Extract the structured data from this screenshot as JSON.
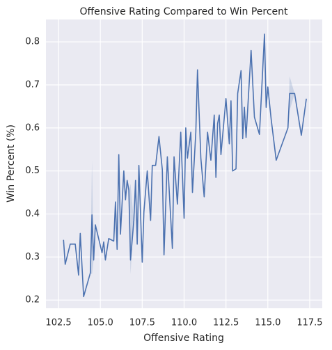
{
  "chart_data": {
    "type": "line",
    "title": "Offensive Rating Compared to Win Percent",
    "x_label": "Offensive Rating",
    "y_label": "Win Percent (%)",
    "x": [
      102.8,
      102.9,
      103.2,
      103.5,
      103.7,
      103.8,
      104.0,
      104.4,
      104.5,
      104.6,
      104.7,
      105.1,
      105.2,
      105.3,
      105.5,
      105.8,
      105.9,
      106.0,
      106.1,
      106.2,
      106.4,
      106.5,
      106.6,
      106.7,
      106.8,
      107.0,
      107.1,
      107.2,
      107.3,
      107.5,
      107.6,
      107.8,
      108.0,
      108.1,
      108.3,
      108.5,
      108.7,
      108.8,
      109.0,
      109.3,
      109.4,
      109.6,
      109.8,
      110.0,
      110.1,
      110.2,
      110.4,
      110.5,
      110.7,
      110.8,
      111.0,
      111.2,
      111.4,
      111.6,
      111.8,
      111.9,
      112.0,
      112.1,
      112.2,
      112.5,
      112.7,
      112.8,
      112.9,
      113.1,
      113.2,
      113.4,
      113.5,
      113.6,
      113.7,
      114.0,
      114.2,
      114.5,
      114.8,
      114.9,
      115.0,
      115.2,
      115.5,
      116.2,
      116.3,
      116.6,
      117.0,
      117.3
    ],
    "series": [
      {
        "color": "#4c72b0",
        "values": [
          0.34,
          0.283,
          0.33,
          0.33,
          0.258,
          0.355,
          0.208,
          0.263,
          0.398,
          0.293,
          0.375,
          0.31,
          0.335,
          0.293,
          0.343,
          0.337,
          0.428,
          0.318,
          0.538,
          0.353,
          0.5,
          0.433,
          0.478,
          0.455,
          0.293,
          0.385,
          0.478,
          0.33,
          0.513,
          0.288,
          0.405,
          0.5,
          0.385,
          0.513,
          0.513,
          0.58,
          0.503,
          0.305,
          0.533,
          0.32,
          0.533,
          0.423,
          0.59,
          0.39,
          0.6,
          0.53,
          0.59,
          0.45,
          0.59,
          0.735,
          0.53,
          0.44,
          0.59,
          0.525,
          0.63,
          0.485,
          0.61,
          0.63,
          0.538,
          0.668,
          0.563,
          0.663,
          0.5,
          0.505,
          0.68,
          0.733,
          0.575,
          0.648,
          0.578,
          0.78,
          0.625,
          0.585,
          0.818,
          0.648,
          0.695,
          0.62,
          0.525,
          0.6,
          0.68,
          0.68,
          0.583,
          0.668
        ],
        "ci_lower": [
          null,
          null,
          null,
          null,
          null,
          null,
          null,
          0.263,
          0.26,
          0.293,
          null,
          null,
          null,
          null,
          null,
          null,
          null,
          null,
          null,
          null,
          null,
          null,
          null,
          0.455,
          0.26,
          0.385,
          null,
          null,
          null,
          null,
          null,
          null,
          null,
          null,
          null,
          null,
          null,
          null,
          null,
          null,
          null,
          null,
          null,
          null,
          null,
          null,
          null,
          null,
          null,
          null,
          null,
          null,
          null,
          null,
          null,
          null,
          null,
          null,
          null,
          null,
          null,
          null,
          null,
          null,
          null,
          null,
          null,
          null,
          null,
          null,
          null,
          null,
          null,
          null,
          null,
          null,
          null,
          0.6,
          0.64,
          0.68,
          null,
          null
        ],
        "ci_upper": [
          null,
          null,
          null,
          null,
          null,
          null,
          null,
          0.263,
          0.525,
          0.293,
          null,
          null,
          null,
          null,
          null,
          null,
          null,
          null,
          null,
          null,
          null,
          null,
          null,
          0.455,
          0.47,
          0.385,
          null,
          null,
          null,
          null,
          null,
          null,
          null,
          null,
          null,
          null,
          null,
          null,
          null,
          null,
          null,
          null,
          null,
          null,
          null,
          null,
          null,
          null,
          null,
          null,
          null,
          null,
          null,
          null,
          null,
          null,
          null,
          null,
          null,
          null,
          null,
          null,
          null,
          null,
          null,
          null,
          null,
          null,
          null,
          null,
          null,
          null,
          null,
          null,
          null,
          null,
          null,
          0.6,
          0.72,
          0.68,
          null,
          null
        ]
      }
    ],
    "xlim": [
      101.75,
      118.25
    ],
    "xticks": [
      {
        "value": 102.5,
        "label": "102.5"
      },
      {
        "value": 105,
        "label": "105.0"
      },
      {
        "value": 107.5,
        "label": "107.5"
      },
      {
        "value": 110,
        "label": "110.0"
      },
      {
        "value": 112.5,
        "label": "112.5"
      },
      {
        "value": 115,
        "label": "115.0"
      },
      {
        "value": 117.5,
        "label": "117.5"
      }
    ],
    "ylim": [
      0.181,
      0.852
    ],
    "yticks": [
      0.2,
      0.3,
      0.4,
      0.5,
      0.6,
      0.7,
      0.8
    ],
    "grid": true
  }
}
